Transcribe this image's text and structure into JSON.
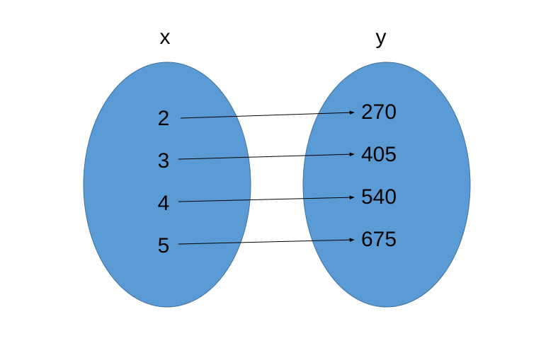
{
  "diagram": {
    "domain_label": "x",
    "codomain_label": "y",
    "fill_color": "#5b9bd5",
    "outline_color": "#41719c",
    "arrow_color": "#000000",
    "mappings": [
      {
        "from": "2",
        "to": "270"
      },
      {
        "from": "3",
        "to": "405"
      },
      {
        "from": "4",
        "to": "540"
      },
      {
        "from": "5",
        "to": "675"
      }
    ]
  }
}
